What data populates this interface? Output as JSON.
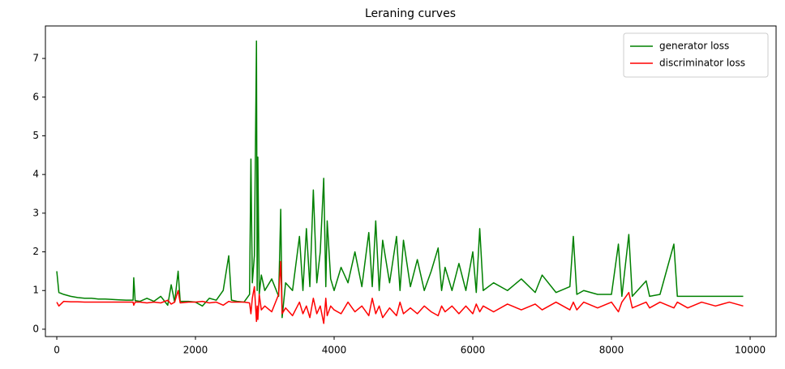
{
  "chart_data": {
    "type": "line",
    "title": "Leraning curves",
    "x": [
      0,
      30,
      100,
      200,
      300,
      400,
      500,
      600,
      700,
      800,
      900,
      1000,
      1100,
      1110,
      1130,
      1200,
      1300,
      1400,
      1500,
      1600,
      1650,
      1700,
      1750,
      1780,
      1900,
      2000,
      2100,
      2200,
      2300,
      2400,
      2480,
      2520,
      2600,
      2700,
      2780,
      2800,
      2820,
      2850,
      2880,
      2890,
      2900,
      2920,
      2950,
      3000,
      3100,
      3200,
      3230,
      3250,
      3300,
      3400,
      3500,
      3550,
      3600,
      3650,
      3700,
      3750,
      3800,
      3850,
      3880,
      3900,
      3950,
      4000,
      4100,
      4200,
      4300,
      4400,
      4500,
      4550,
      4600,
      4650,
      4700,
      4800,
      4900,
      4950,
      5000,
      5100,
      5200,
      5300,
      5400,
      5500,
      5550,
      5600,
      5700,
      5800,
      5900,
      6000,
      6050,
      6100,
      6150,
      6300,
      6500,
      6700,
      6900,
      7000,
      7200,
      7400,
      7450,
      7500,
      7600,
      7800,
      8000,
      8100,
      8150,
      8250,
      8300,
      8500,
      8550,
      8700,
      8900,
      8950,
      9100,
      9300,
      9500,
      9700,
      9900
    ],
    "series": [
      {
        "name": "generator loss",
        "color": "#008000",
        "values": [
          1.5,
          0.95,
          0.9,
          0.85,
          0.82,
          0.8,
          0.8,
          0.78,
          0.78,
          0.77,
          0.76,
          0.75,
          0.75,
          1.33,
          0.74,
          0.72,
          0.8,
          0.72,
          0.85,
          0.62,
          1.15,
          0.7,
          1.5,
          0.72,
          0.72,
          0.7,
          0.6,
          0.8,
          0.75,
          1.0,
          1.9,
          0.75,
          0.72,
          0.7,
          0.9,
          4.4,
          1.2,
          1.9,
          7.45,
          1.0,
          4.45,
          0.9,
          1.4,
          1.0,
          1.3,
          0.85,
          3.1,
          0.3,
          1.2,
          1.0,
          2.4,
          1.0,
          2.6,
          1.1,
          3.6,
          1.2,
          2.0,
          3.9,
          1.1,
          2.8,
          1.3,
          1.0,
          1.6,
          1.2,
          2.0,
          1.1,
          2.5,
          1.1,
          2.8,
          1.0,
          2.3,
          1.2,
          2.4,
          1.0,
          2.3,
          1.1,
          1.8,
          1.0,
          1.5,
          2.1,
          1.0,
          1.6,
          1.0,
          1.7,
          1.0,
          2.0,
          0.95,
          2.6,
          1.0,
          1.2,
          1.0,
          1.3,
          0.95,
          1.4,
          0.95,
          1.1,
          2.4,
          0.9,
          1.0,
          0.9,
          0.9,
          2.2,
          0.85,
          2.45,
          0.85,
          1.25,
          0.85,
          0.9,
          2.2,
          0.85,
          0.85,
          0.85,
          0.85,
          0.85,
          0.85
        ]
      },
      {
        "name": "discriminator loss",
        "color": "#ff0000",
        "values": [
          0.7,
          0.6,
          0.72,
          0.71,
          0.71,
          0.7,
          0.7,
          0.7,
          0.7,
          0.7,
          0.7,
          0.7,
          0.7,
          0.62,
          0.7,
          0.7,
          0.68,
          0.7,
          0.68,
          0.75,
          0.65,
          0.7,
          1.0,
          0.68,
          0.7,
          0.7,
          0.72,
          0.68,
          0.7,
          0.62,
          0.72,
          0.7,
          0.7,
          0.7,
          0.68,
          0.4,
          0.8,
          1.1,
          0.2,
          0.6,
          0.25,
          0.9,
          0.5,
          0.6,
          0.45,
          0.9,
          1.75,
          0.4,
          0.55,
          0.35,
          0.7,
          0.4,
          0.6,
          0.3,
          0.8,
          0.4,
          0.6,
          0.15,
          0.8,
          0.35,
          0.6,
          0.5,
          0.4,
          0.7,
          0.45,
          0.6,
          0.35,
          0.8,
          0.4,
          0.6,
          0.3,
          0.55,
          0.35,
          0.7,
          0.4,
          0.55,
          0.4,
          0.6,
          0.45,
          0.35,
          0.6,
          0.45,
          0.6,
          0.4,
          0.6,
          0.4,
          0.65,
          0.45,
          0.6,
          0.45,
          0.65,
          0.5,
          0.65,
          0.5,
          0.7,
          0.5,
          0.7,
          0.5,
          0.7,
          0.55,
          0.7,
          0.45,
          0.7,
          0.95,
          0.55,
          0.7,
          0.55,
          0.7,
          0.55,
          0.7,
          0.55,
          0.7,
          0.6,
          0.7,
          0.6
        ]
      }
    ],
    "xlim": [
      -164,
      10374
    ],
    "xticks": [
      0,
      2000,
      4000,
      6000,
      8000,
      10000
    ],
    "ylim": [
      -0.19,
      7.84
    ],
    "yticks": [
      0,
      1,
      2,
      3,
      4,
      5,
      6,
      7
    ],
    "grid": false,
    "legend": "upper right"
  }
}
